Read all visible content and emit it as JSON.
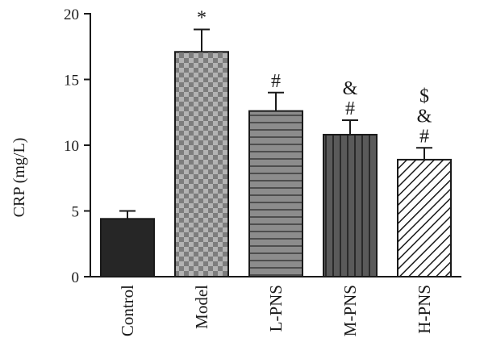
{
  "chart_data": {
    "type": "bar",
    "categories": [
      "Control",
      "Model",
      "L-PNS",
      "M-PNS",
      "H-PNS"
    ],
    "values": [
      4.4,
      17.1,
      12.6,
      10.8,
      8.9
    ],
    "errors": [
      0.6,
      1.7,
      1.4,
      1.1,
      0.9
    ],
    "annotations": [
      [],
      [
        "*"
      ],
      [
        "#"
      ],
      [
        "&",
        "#"
      ],
      [
        "$",
        "&",
        "#"
      ]
    ],
    "ylabel": "CRP (mg/L)",
    "ylim": [
      0,
      20
    ],
    "yticks": [
      0,
      5,
      10,
      15,
      20
    ],
    "yticklabels": [
      "0",
      "5",
      "10",
      "15",
      "20"
    ],
    "grid": false,
    "bar_styles": [
      {
        "pattern": "solid",
        "color": "#262626"
      },
      {
        "pattern": "checker",
        "color": "#9a9a9a"
      },
      {
        "pattern": "horizontal-lines",
        "color": "#8c8c8c"
      },
      {
        "pattern": "vertical-lines",
        "color": "#5a5a5a"
      },
      {
        "pattern": "diagonal-lines",
        "color": "#ffffff"
      }
    ]
  }
}
